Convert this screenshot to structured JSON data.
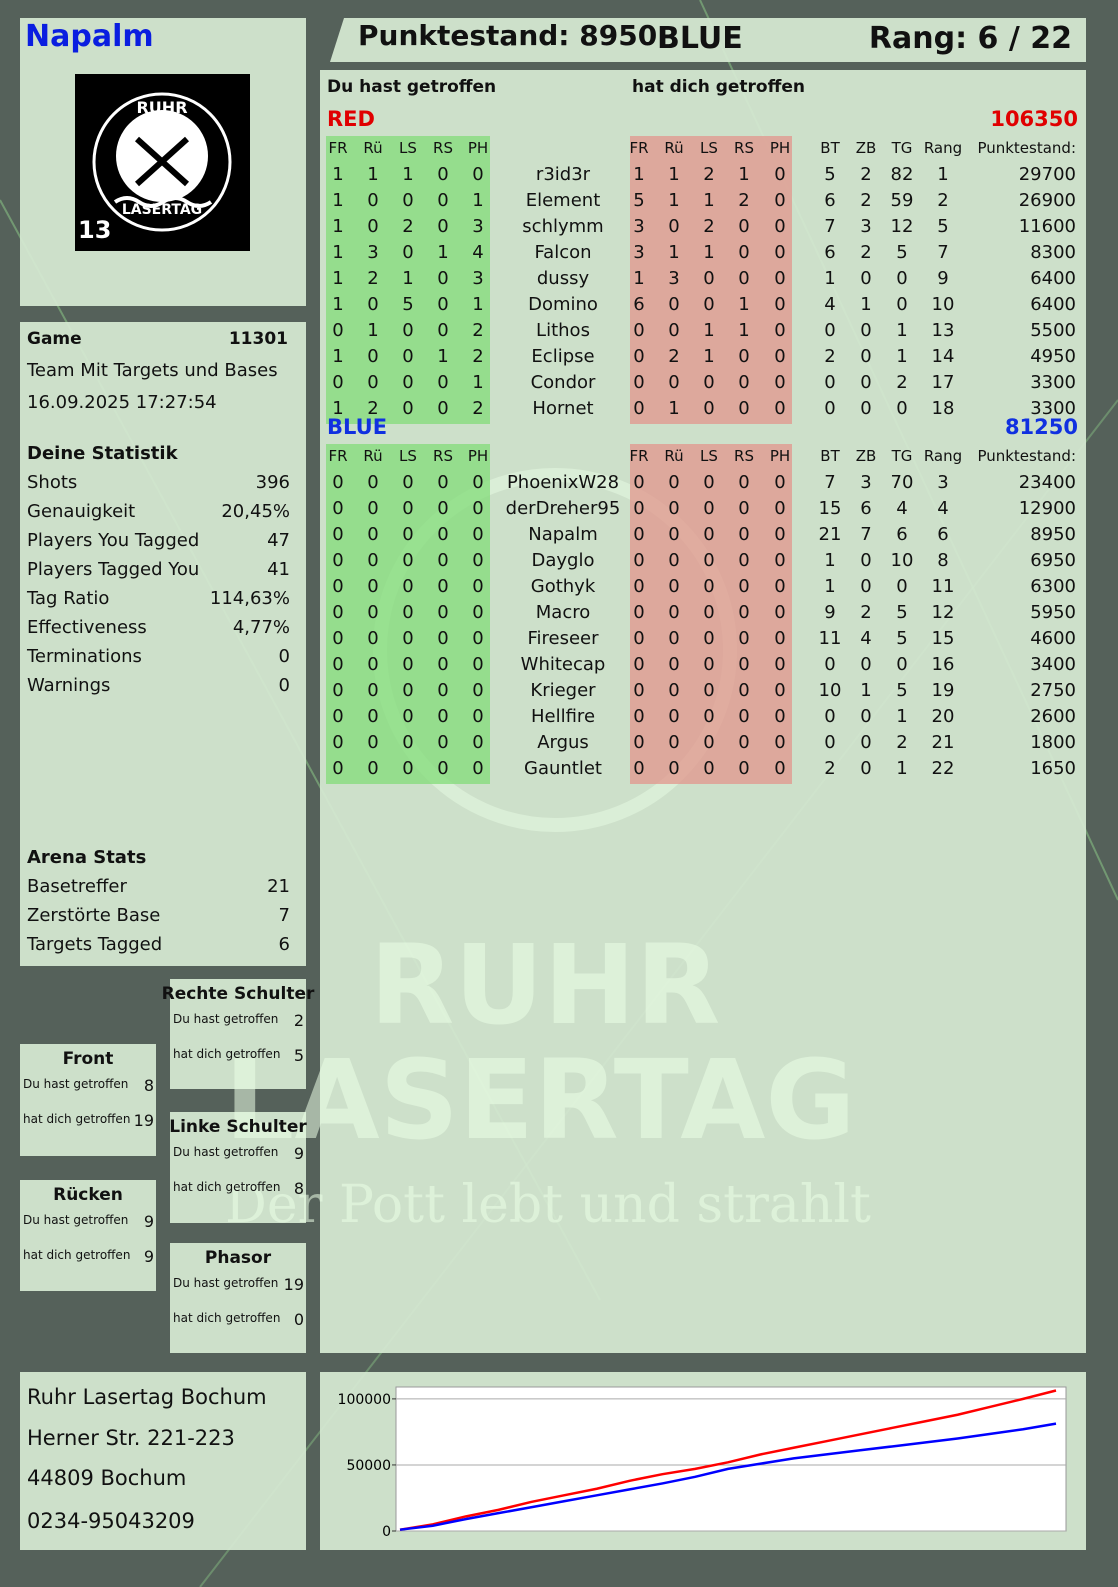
{
  "header": {
    "player": "Napalm",
    "score_text": "Punktestand: 8950",
    "team": "BLUE",
    "rank_text": "Rang: 6 / 22"
  },
  "logo": {
    "top": "RUHR",
    "bottom": "LASERTAG",
    "number": "13"
  },
  "watermark": {
    "line1": "RUHR",
    "line2": "LASERTAG",
    "slogan": "Der Pott lebt und strahlt"
  },
  "game": {
    "label": "Game",
    "id": 11301,
    "mode": "Team Mit Targets und Bases",
    "datetime": "16.09.2025 17:27:54"
  },
  "personal_stats": {
    "title": "Deine Statistik",
    "rows": [
      [
        "Shots",
        396
      ],
      [
        "Genauigkeit",
        "20,45%"
      ],
      [
        "Players You Tagged",
        47
      ],
      [
        "Players Tagged You",
        41
      ],
      [
        "Tag Ratio",
        "114,63%"
      ],
      [
        "Effectiveness",
        "4,77%"
      ],
      [
        "Terminations",
        0
      ],
      [
        "Warnings",
        0
      ]
    ]
  },
  "arena_stats": {
    "title": "Arena Stats",
    "rows": [
      [
        "Basetreffer",
        21
      ],
      [
        "Zerstörte Base",
        7
      ],
      [
        "Targets Tagged",
        6
      ]
    ]
  },
  "zones": [
    {
      "title": "Rechte Schulter",
      "rows": [
        [
          "Du hast getroffen",
          2
        ],
        [
          "hat dich getroffen",
          5
        ]
      ]
    },
    {
      "title": "Front",
      "rows": [
        [
          "Du hast getroffen",
          8
        ],
        [
          "hat dich getroffen",
          19
        ]
      ]
    },
    {
      "title": "Linke Schulter",
      "rows": [
        [
          "Du hast getroffen",
          9
        ],
        [
          "hat dich getroffen",
          8
        ]
      ]
    },
    {
      "title": "Rücken",
      "rows": [
        [
          "Du hast getroffen",
          9
        ],
        [
          "hat dich getroffen",
          9
        ]
      ]
    },
    {
      "title": "Phasor",
      "rows": [
        [
          "Du hast getroffen",
          19
        ],
        [
          "hat dich getroffen",
          0
        ]
      ]
    }
  ],
  "address": [
    "Ruhr Lasertag Bochum",
    "Herner Str. 221-223",
    "44809 Bochum",
    "0234-95043209"
  ],
  "scoreboard": {
    "you_hit": "Du hast getroffen",
    "hit_you": "hat dich getroffen",
    "hit_columns": [
      "FR",
      "Rü",
      "LS",
      "RS",
      "PH"
    ],
    "stat_columns": [
      "BT",
      "ZB",
      "TG",
      "Rang",
      "Punktestand:"
    ],
    "teams": [
      {
        "name": "RED",
        "color": "#e00000",
        "score": 106350,
        "players": [
          [
            1,
            1,
            1,
            0,
            0,
            "r3id3r",
            1,
            1,
            2,
            1,
            0,
            5,
            2,
            82,
            1,
            29700
          ],
          [
            1,
            0,
            0,
            0,
            1,
            "Element",
            5,
            1,
            1,
            2,
            0,
            6,
            2,
            59,
            2,
            26900
          ],
          [
            1,
            0,
            2,
            0,
            3,
            "schlymm",
            3,
            0,
            2,
            0,
            0,
            7,
            3,
            12,
            5,
            11600
          ],
          [
            1,
            3,
            0,
            1,
            4,
            "Falcon",
            3,
            1,
            1,
            0,
            0,
            6,
            2,
            5,
            7,
            8300
          ],
          [
            1,
            2,
            1,
            0,
            3,
            "dussy",
            1,
            3,
            0,
            0,
            0,
            1,
            0,
            0,
            9,
            6400
          ],
          [
            1,
            0,
            5,
            0,
            1,
            "Domino",
            6,
            0,
            0,
            1,
            0,
            4,
            1,
            0,
            10,
            6400
          ],
          [
            0,
            1,
            0,
            0,
            2,
            "Lithos",
            0,
            0,
            1,
            1,
            0,
            0,
            0,
            1,
            13,
            5500
          ],
          [
            1,
            0,
            0,
            1,
            2,
            "Eclipse",
            0,
            2,
            1,
            0,
            0,
            2,
            0,
            1,
            14,
            4950
          ],
          [
            0,
            0,
            0,
            0,
            1,
            "Condor",
            0,
            0,
            0,
            0,
            0,
            0,
            0,
            2,
            17,
            3300
          ],
          [
            1,
            2,
            0,
            0,
            2,
            "Hornet",
            0,
            1,
            0,
            0,
            0,
            0,
            0,
            0,
            18,
            3300
          ]
        ]
      },
      {
        "name": "BLUE",
        "color": "#1030e0",
        "score": 81250,
        "players": [
          [
            0,
            0,
            0,
            0,
            0,
            "PhoenixW28",
            0,
            0,
            0,
            0,
            0,
            7,
            3,
            70,
            3,
            23400
          ],
          [
            0,
            0,
            0,
            0,
            0,
            "derDreher95",
            0,
            0,
            0,
            0,
            0,
            15,
            6,
            4,
            4,
            12900
          ],
          [
            0,
            0,
            0,
            0,
            0,
            "Napalm",
            0,
            0,
            0,
            0,
            0,
            21,
            7,
            6,
            6,
            8950
          ],
          [
            0,
            0,
            0,
            0,
            0,
            "Dayglo",
            0,
            0,
            0,
            0,
            0,
            1,
            0,
            10,
            8,
            6950
          ],
          [
            0,
            0,
            0,
            0,
            0,
            "Gothyk",
            0,
            0,
            0,
            0,
            0,
            1,
            0,
            0,
            11,
            6300
          ],
          [
            0,
            0,
            0,
            0,
            0,
            "Macro",
            0,
            0,
            0,
            0,
            0,
            9,
            2,
            5,
            12,
            5950
          ],
          [
            0,
            0,
            0,
            0,
            0,
            "Fireseer",
            0,
            0,
            0,
            0,
            0,
            11,
            4,
            5,
            15,
            4600
          ],
          [
            0,
            0,
            0,
            0,
            0,
            "Whitecap",
            0,
            0,
            0,
            0,
            0,
            0,
            0,
            0,
            16,
            3400
          ],
          [
            0,
            0,
            0,
            0,
            0,
            "Krieger",
            0,
            0,
            0,
            0,
            0,
            10,
            1,
            5,
            19,
            2750
          ],
          [
            0,
            0,
            0,
            0,
            0,
            "Hellfire",
            0,
            0,
            0,
            0,
            0,
            0,
            0,
            1,
            20,
            2600
          ],
          [
            0,
            0,
            0,
            0,
            0,
            "Argus",
            0,
            0,
            0,
            0,
            0,
            0,
            0,
            2,
            21,
            1800
          ],
          [
            0,
            0,
            0,
            0,
            0,
            "Gauntlet",
            0,
            0,
            0,
            0,
            0,
            2,
            0,
            1,
            22,
            1650
          ]
        ]
      }
    ]
  },
  "chart_data": {
    "type": "line",
    "series": [
      {
        "color": "#ff0000",
        "values": [
          1000,
          5000,
          11000,
          16000,
          22000,
          27000,
          32000,
          38000,
          43000,
          47000,
          52000,
          58000,
          63000,
          68000,
          73000,
          78000,
          83000,
          88000,
          94000,
          100000,
          106350
        ]
      },
      {
        "color": "#0000ff",
        "values": [
          1000,
          4000,
          9000,
          13500,
          18000,
          22500,
          27000,
          31500,
          36000,
          41000,
          47000,
          51000,
          55000,
          58000,
          61000,
          64000,
          67000,
          70000,
          73500,
          77000,
          81250
        ]
      }
    ],
    "ylim": [
      0,
      109000
    ],
    "yticks": [
      0,
      50000,
      100000
    ]
  }
}
